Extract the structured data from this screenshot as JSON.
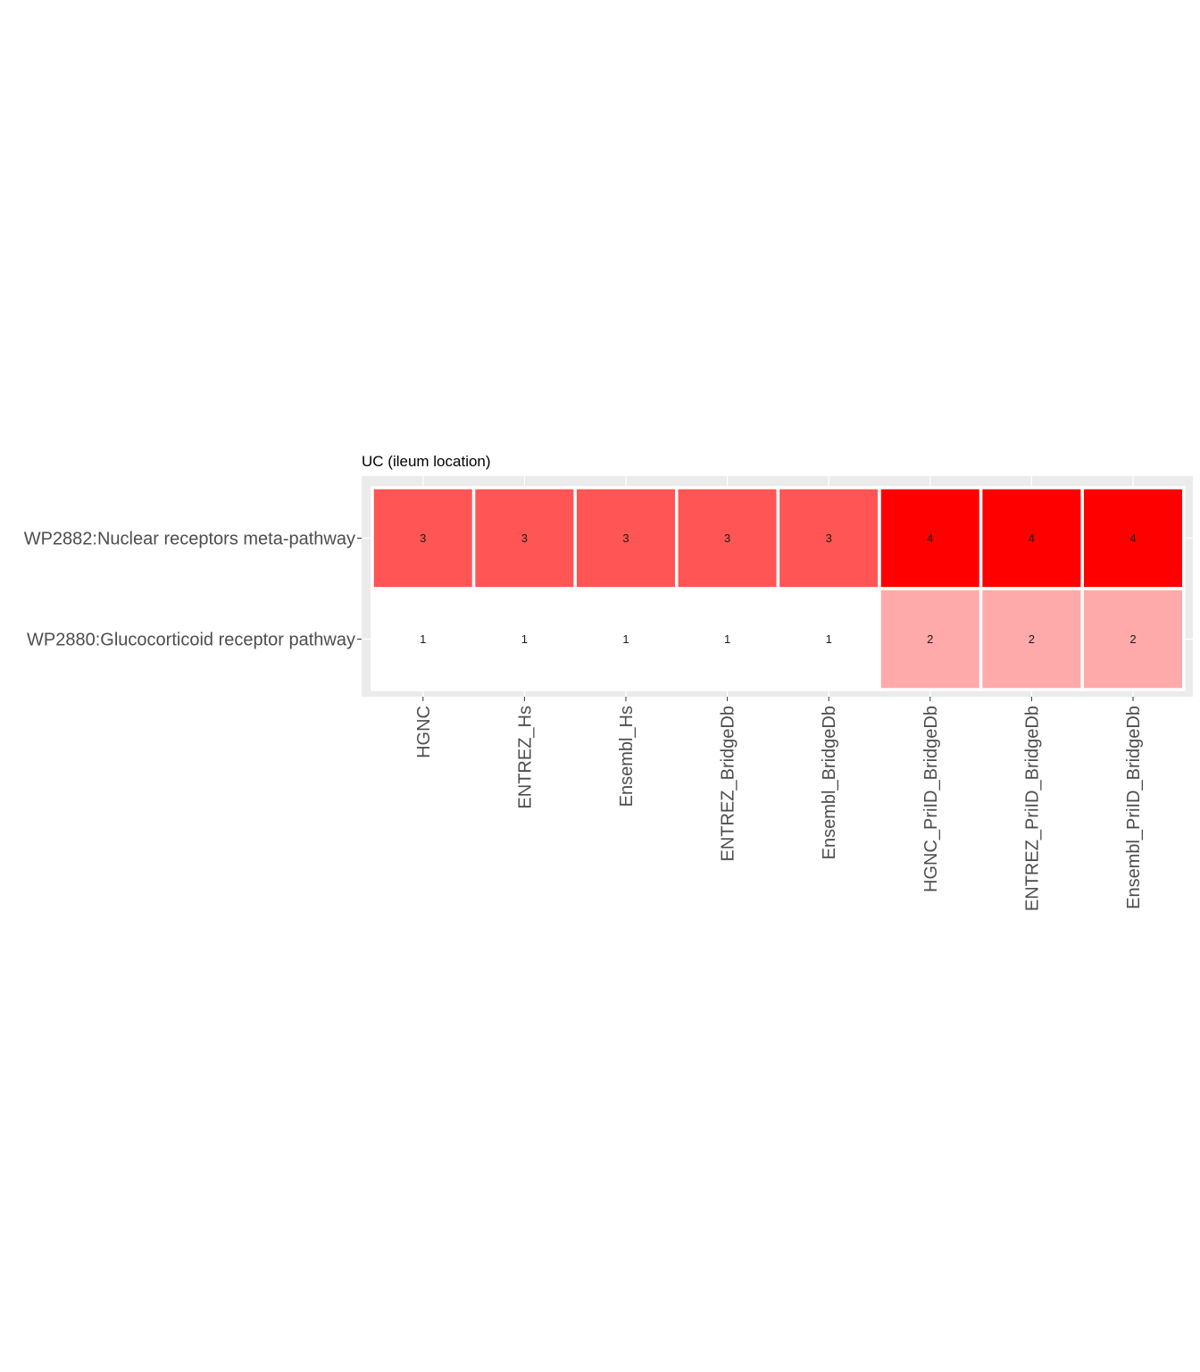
{
  "chart_data": {
    "type": "heatmap",
    "title": "UC (ileum location)",
    "xlabel": "",
    "ylabel": "",
    "x_categories": [
      "HGNC",
      "ENTREZ_Hs",
      "Ensembl_Hs",
      "ENTREZ_BridgeDb",
      "Ensembl_BridgeDb",
      "HGNC_PriID_BridgeDb",
      "ENTREZ_PriID_BridgeDb",
      "Ensembl_PriID_BridgeDb"
    ],
    "y_categories": [
      "WP2882:Nuclear receptors meta-pathway",
      "WP2880:Glucocorticoid receptor pathway"
    ],
    "values": [
      [
        3,
        3,
        3,
        3,
        3,
        4,
        4,
        4
      ],
      [
        1,
        1,
        1,
        1,
        1,
        2,
        2,
        2
      ]
    ],
    "value_range": [
      1,
      4
    ],
    "color_low": "#ffffff",
    "color_high": "#ff0000",
    "panel_background": "#ebebeb",
    "grid": true,
    "legend": "none",
    "x_tick_rotation": "vertical"
  }
}
